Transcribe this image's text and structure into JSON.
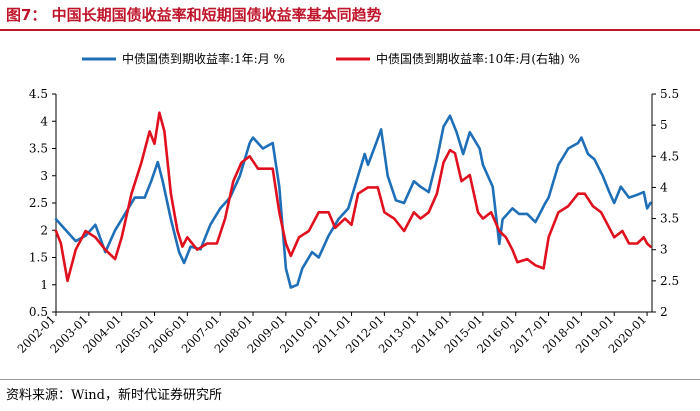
{
  "header": {
    "title": "图7：  中国长期国债收益率和短期国债收益率基本同趋势"
  },
  "footer": {
    "source": "资料来源：Wind，新时代证券研究所"
  },
  "colors": {
    "title": "#c0142a",
    "series_1y": "#1f6fb8",
    "series_10y": "#e0101e"
  },
  "chart_data": {
    "type": "line",
    "title": "",
    "legend_position": "top",
    "x_labels": [
      "2002-01",
      "2003-01",
      "2004-01",
      "2005-01",
      "2006-01",
      "2007-01",
      "2008-01",
      "2009-01",
      "2010-01",
      "2011-01",
      "2012-01",
      "2013-01",
      "2014-01",
      "2015-01",
      "2016-01",
      "2017-01",
      "2018-01",
      "2019-01",
      "2020-01"
    ],
    "y_left": {
      "min": 0.5,
      "max": 4.5,
      "ticks": [
        "0.5",
        "1",
        "1.5",
        "2",
        "2.5",
        "3",
        "3.5",
        "4",
        "4.5"
      ]
    },
    "y_right": {
      "min": 2,
      "max": 5.5,
      "ticks": [
        "2",
        "2.5",
        "3",
        "3.5",
        "4",
        "4.5",
        "5",
        "5.5"
      ]
    },
    "series": [
      {
        "name": "中债国债到期收益率:1年:月 %",
        "axis": "left",
        "points": [
          [
            2002.0,
            2.2
          ],
          [
            2002.3,
            2.0
          ],
          [
            2002.6,
            1.8
          ],
          [
            2002.9,
            1.9
          ],
          [
            2003.2,
            2.1
          ],
          [
            2003.5,
            1.6
          ],
          [
            2003.8,
            2.0
          ],
          [
            2004.1,
            2.3
          ],
          [
            2004.4,
            2.6
          ],
          [
            2004.7,
            2.6
          ],
          [
            2004.9,
            2.9
          ],
          [
            2005.1,
            3.25
          ],
          [
            2005.25,
            2.9
          ],
          [
            2005.5,
            2.2
          ],
          [
            2005.75,
            1.6
          ],
          [
            2005.9,
            1.4
          ],
          [
            2006.1,
            1.7
          ],
          [
            2006.4,
            1.65
          ],
          [
            2006.7,
            2.1
          ],
          [
            2007.0,
            2.4
          ],
          [
            2007.3,
            2.6
          ],
          [
            2007.6,
            3.0
          ],
          [
            2007.9,
            3.6
          ],
          [
            2008.0,
            3.7
          ],
          [
            2008.3,
            3.5
          ],
          [
            2008.6,
            3.6
          ],
          [
            2008.8,
            2.8
          ],
          [
            2009.0,
            1.3
          ],
          [
            2009.15,
            0.95
          ],
          [
            2009.35,
            1.0
          ],
          [
            2009.5,
            1.3
          ],
          [
            2009.8,
            1.6
          ],
          [
            2010.0,
            1.5
          ],
          [
            2010.3,
            1.9
          ],
          [
            2010.6,
            2.2
          ],
          [
            2010.9,
            2.4
          ],
          [
            2011.0,
            2.6
          ],
          [
            2011.2,
            3.0
          ],
          [
            2011.4,
            3.4
          ],
          [
            2011.5,
            3.2
          ],
          [
            2011.75,
            3.6
          ],
          [
            2011.9,
            3.85
          ],
          [
            2012.1,
            3.0
          ],
          [
            2012.35,
            2.55
          ],
          [
            2012.6,
            2.5
          ],
          [
            2012.9,
            2.9
          ],
          [
            2013.1,
            2.8
          ],
          [
            2013.35,
            2.7
          ],
          [
            2013.6,
            3.3
          ],
          [
            2013.8,
            3.9
          ],
          [
            2014.0,
            4.1
          ],
          [
            2014.2,
            3.8
          ],
          [
            2014.4,
            3.4
          ],
          [
            2014.6,
            3.8
          ],
          [
            2014.9,
            3.5
          ],
          [
            2015.0,
            3.2
          ],
          [
            2015.3,
            2.8
          ],
          [
            2015.5,
            1.75
          ],
          [
            2015.6,
            2.2
          ],
          [
            2015.9,
            2.4
          ],
          [
            2016.1,
            2.3
          ],
          [
            2016.35,
            2.3
          ],
          [
            2016.6,
            2.15
          ],
          [
            2016.9,
            2.5
          ],
          [
            2017.0,
            2.6
          ],
          [
            2017.3,
            3.2
          ],
          [
            2017.6,
            3.5
          ],
          [
            2017.9,
            3.6
          ],
          [
            2018.0,
            3.7
          ],
          [
            2018.2,
            3.4
          ],
          [
            2018.4,
            3.3
          ],
          [
            2018.65,
            3.0
          ],
          [
            2018.85,
            2.7
          ],
          [
            2019.0,
            2.5
          ],
          [
            2019.2,
            2.8
          ],
          [
            2019.45,
            2.6
          ],
          [
            2019.7,
            2.65
          ],
          [
            2019.9,
            2.7
          ],
          [
            2020.0,
            2.4
          ],
          [
            2020.1,
            2.5
          ]
        ]
      },
      {
        "name": "中债国债到期收益率:10年:月(右轴) %",
        "axis": "right",
        "points": [
          [
            2002.0,
            3.3
          ],
          [
            2002.15,
            3.1
          ],
          [
            2002.35,
            2.5
          ],
          [
            2002.6,
            3.0
          ],
          [
            2002.9,
            3.3
          ],
          [
            2003.2,
            3.2
          ],
          [
            2003.5,
            3.0
          ],
          [
            2003.8,
            2.85
          ],
          [
            2004.0,
            3.2
          ],
          [
            2004.3,
            3.9
          ],
          [
            2004.6,
            4.4
          ],
          [
            2004.85,
            4.9
          ],
          [
            2005.0,
            4.7
          ],
          [
            2005.15,
            5.2
          ],
          [
            2005.3,
            4.9
          ],
          [
            2005.5,
            3.9
          ],
          [
            2005.7,
            3.3
          ],
          [
            2005.85,
            3.05
          ],
          [
            2006.0,
            3.2
          ],
          [
            2006.3,
            3.0
          ],
          [
            2006.6,
            3.1
          ],
          [
            2006.9,
            3.1
          ],
          [
            2007.15,
            3.5
          ],
          [
            2007.4,
            4.1
          ],
          [
            2007.65,
            4.4
          ],
          [
            2007.9,
            4.5
          ],
          [
            2008.15,
            4.3
          ],
          [
            2008.4,
            4.3
          ],
          [
            2008.6,
            4.3
          ],
          [
            2008.8,
            3.6
          ],
          [
            2009.0,
            3.1
          ],
          [
            2009.15,
            2.9
          ],
          [
            2009.4,
            3.2
          ],
          [
            2009.7,
            3.3
          ],
          [
            2010.0,
            3.6
          ],
          [
            2010.3,
            3.6
          ],
          [
            2010.5,
            3.35
          ],
          [
            2010.8,
            3.5
          ],
          [
            2011.0,
            3.4
          ],
          [
            2011.2,
            3.9
          ],
          [
            2011.5,
            4.0
          ],
          [
            2011.8,
            4.0
          ],
          [
            2012.0,
            3.6
          ],
          [
            2012.3,
            3.5
          ],
          [
            2012.6,
            3.3
          ],
          [
            2012.9,
            3.6
          ],
          [
            2013.1,
            3.5
          ],
          [
            2013.35,
            3.6
          ],
          [
            2013.6,
            3.9
          ],
          [
            2013.8,
            4.4
          ],
          [
            2014.0,
            4.6
          ],
          [
            2014.15,
            4.55
          ],
          [
            2014.35,
            4.1
          ],
          [
            2014.6,
            4.2
          ],
          [
            2014.85,
            3.6
          ],
          [
            2015.0,
            3.5
          ],
          [
            2015.25,
            3.6
          ],
          [
            2015.5,
            3.3
          ],
          [
            2015.7,
            3.2
          ],
          [
            2015.9,
            3.0
          ],
          [
            2016.05,
            2.8
          ],
          [
            2016.35,
            2.85
          ],
          [
            2016.6,
            2.75
          ],
          [
            2016.85,
            2.7
          ],
          [
            2017.0,
            3.2
          ],
          [
            2017.3,
            3.6
          ],
          [
            2017.6,
            3.7
          ],
          [
            2017.9,
            3.9
          ],
          [
            2018.1,
            3.9
          ],
          [
            2018.35,
            3.7
          ],
          [
            2018.6,
            3.6
          ],
          [
            2018.8,
            3.4
          ],
          [
            2019.0,
            3.2
          ],
          [
            2019.25,
            3.3
          ],
          [
            2019.45,
            3.1
          ],
          [
            2019.7,
            3.1
          ],
          [
            2019.9,
            3.2
          ],
          [
            2020.0,
            3.1
          ],
          [
            2020.1,
            3.05
          ]
        ]
      }
    ]
  }
}
